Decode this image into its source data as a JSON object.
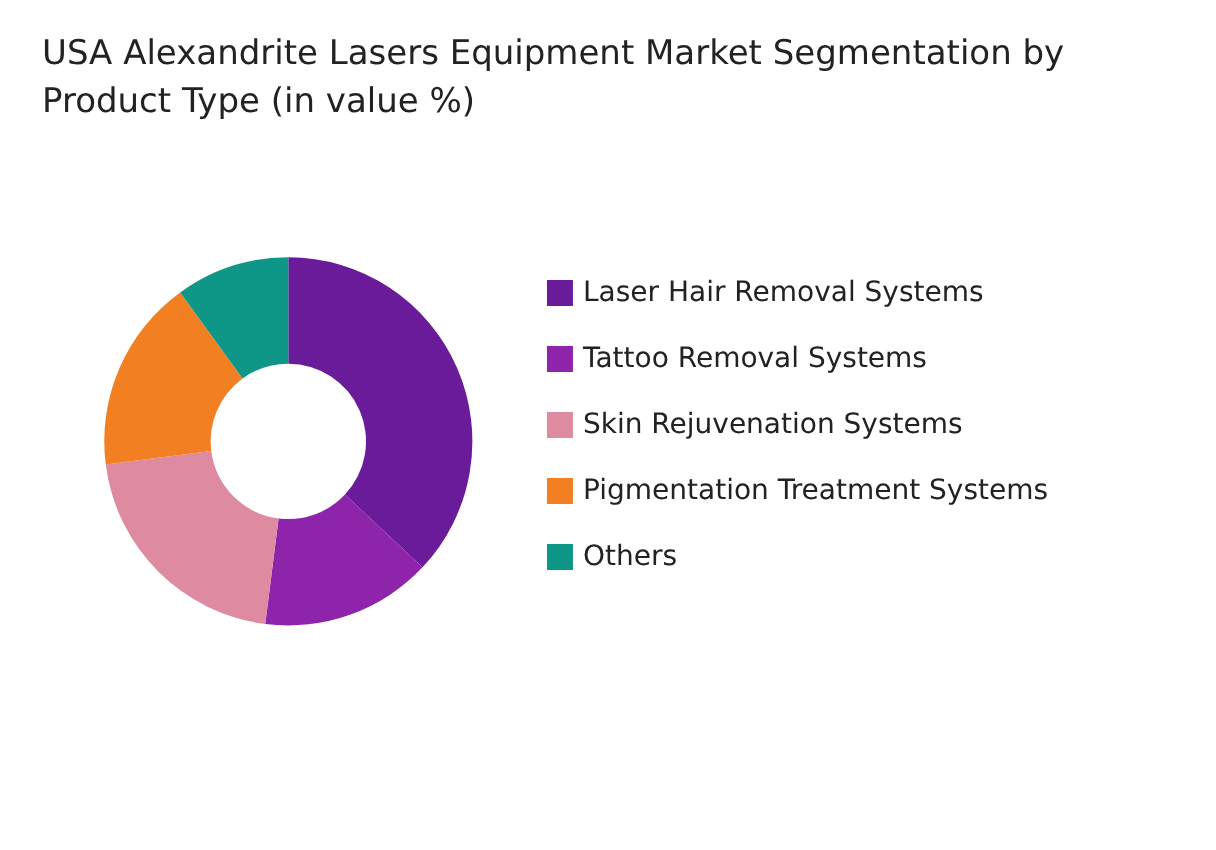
{
  "chart_data": {
    "type": "donut",
    "title": "USA Alexandrite Lasers Equipment Market Segmentation by Product Type (in value %)",
    "categories": [
      "Laser Hair Removal Systems",
      "Tattoo Removal Systems",
      "Skin Rejuvenation Systems",
      "Pigmentation Treatment Systems",
      "Others"
    ],
    "values": [
      37,
      15,
      21,
      17,
      10
    ],
    "colors": [
      "#6a1b9a",
      "#8e24aa",
      "#de8aa0",
      "#f28023",
      "#0e9687"
    ],
    "legend": "right"
  }
}
